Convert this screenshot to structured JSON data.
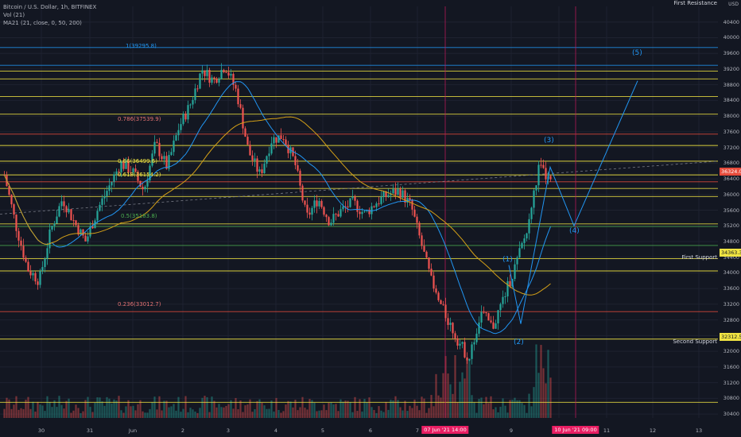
{
  "legend": {
    "title": "Bitcoin / U.S. Dollar, 1h, BITFINEX",
    "vol": "Vol (21)",
    "ma": "MA21 (21, close, 0, 50, 200)"
  },
  "colors": {
    "background": "#131722",
    "up": "#26a69a",
    "down": "#ef5350",
    "yellow_line": "#f0e442",
    "blue_line": "#2196f3",
    "red_line": "#e74c3c",
    "green_line": "#4caf50",
    "ma_fast": "#2196f3",
    "ma_slow": "#d4a017",
    "vertical_marker": "#c2185b"
  },
  "labels": {
    "first_resistance": "First Resistance",
    "first_support": "First Support",
    "second_support": "Second Support",
    "unit": "USD",
    "fib_1": "1(39295.8)",
    "fib_0786": "0.786(37539.9)",
    "fib_066": "0.66(36499.6)",
    "fib_0618": "0.618(36154.2)",
    "fib_05": "0.5(35183.8)",
    "fib_0236": "0.236(33012.7)",
    "wave_1": "(1)",
    "wave_2": "(2)",
    "wave_3": "(3)",
    "wave_4": "(4)",
    "wave_5": "(5)",
    "price_tag": "36324.0",
    "support_tag_1": "34363.3",
    "support_tag_2": "32312.5"
  },
  "chart_data": {
    "type": "candlestick",
    "symbol": "BTCUSD",
    "interval": "1h",
    "ylim": [
      30300,
      40800
    ],
    "y_ticks": [
      30400,
      30800,
      31200,
      31600,
      32000,
      32400,
      32800,
      33200,
      33600,
      34000,
      34400,
      34800,
      35200,
      35600,
      36000,
      36400,
      36800,
      37200,
      37600,
      38000,
      38400,
      38800,
      39200,
      39600,
      40000,
      40400
    ],
    "x_ticks": [
      "30",
      "31",
      "Jun",
      "2",
      "3",
      "4",
      "5",
      "6",
      "7",
      "9",
      "10",
      "11",
      "12",
      "13"
    ],
    "x_highlight": [
      "07 Jun '21   14:00",
      "10 Jun '21   09:00"
    ],
    "horizontal_levels": [
      {
        "price": 39750,
        "color": "blue"
      },
      {
        "price": 39295.8,
        "color": "blue"
      },
      {
        "price": 39150,
        "color": "yellow"
      },
      {
        "price": 38950,
        "color": "yellow"
      },
      {
        "price": 38500,
        "color": "yellow"
      },
      {
        "price": 38050,
        "color": "yellow"
      },
      {
        "price": 37540,
        "color": "red"
      },
      {
        "price": 37250,
        "color": "yellow"
      },
      {
        "price": 36850,
        "color": "yellow"
      },
      {
        "price": 36500,
        "color": "yellow"
      },
      {
        "price": 36324,
        "color": "red"
      },
      {
        "price": 36154,
        "color": "yellow"
      },
      {
        "price": 35950,
        "color": "yellow"
      },
      {
        "price": 35250,
        "color": "yellow"
      },
      {
        "price": 35184,
        "color": "green"
      },
      {
        "price": 34700,
        "color": "green"
      },
      {
        "price": 34363,
        "color": "yellow"
      },
      {
        "price": 34050,
        "color": "yellow"
      },
      {
        "price": 33013,
        "color": "red"
      },
      {
        "price": 32312,
        "color": "yellow"
      },
      {
        "price": 30700,
        "color": "yellow"
      }
    ],
    "wave_path": [
      {
        "label": "(1)",
        "price": 34200
      },
      {
        "label": "(2)",
        "price": 32700
      },
      {
        "label": "(3)",
        "price": 36700
      },
      {
        "label": "(4)",
        "price": 35200
      },
      {
        "label": "(5)",
        "price": 38900
      }
    ],
    "close_path": [
      36500,
      35200,
      34100,
      33800,
      35100,
      35900,
      35300,
      34800,
      35600,
      36200,
      36800,
      36600,
      36100,
      37300,
      36700,
      37700,
      38300,
      39200,
      38900,
      39300,
      38600,
      37100,
      36500,
      37400,
      37500,
      36800,
      35400,
      35900,
      35300,
      35600,
      35800,
      35500,
      35800,
      36000,
      36100,
      35700,
      34600,
      33500,
      32900,
      32300,
      31800,
      33000,
      32600,
      33400,
      34200,
      35100,
      36700,
      36300
    ]
  }
}
